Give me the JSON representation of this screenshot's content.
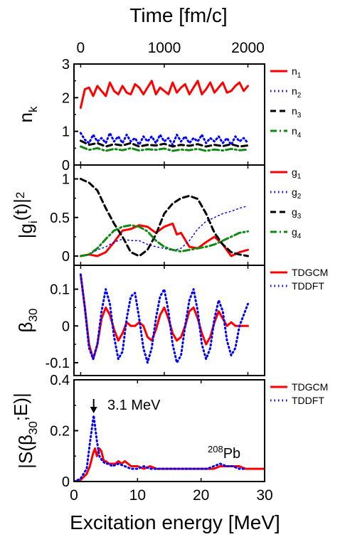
{
  "top_axis": {
    "title": "Time [fm/c]",
    "ticks": [
      {
        "v": 0,
        "label": "0"
      },
      {
        "v": 1000,
        "label": "1000"
      },
      {
        "v": 2000,
        "label": "2000"
      }
    ],
    "range": [
      -80,
      2200
    ]
  },
  "bottom_axis": {
    "title": "Excitation energy [MeV]",
    "ticks": [
      {
        "v": 0,
        "label": "0"
      },
      {
        "v": 10,
        "label": "10"
      },
      {
        "v": 20,
        "label": "20"
      },
      {
        "v": 30,
        "label": "30"
      }
    ],
    "range": [
      0,
      30
    ]
  },
  "colors": {
    "red": "#ff0000",
    "blue": "#0000ff",
    "black": "#000000",
    "green": "#118811"
  },
  "chart_data": [
    {
      "type": "line",
      "panel": "nk",
      "ylabel": "n",
      "ylabel_sub": "k",
      "xlim": [
        -80,
        2200
      ],
      "ylim": [
        0,
        3
      ],
      "yticks": [
        "0",
        "1",
        "2",
        "3"
      ],
      "yticks_v": [
        0,
        1,
        2,
        3
      ],
      "legend_placement": "right",
      "series": [
        {
          "name": "n",
          "sub": "1",
          "color": "red",
          "dash": "solid",
          "width": 3,
          "x": [
            0,
            50,
            100,
            150,
            200,
            250,
            300,
            350,
            400,
            450,
            500,
            550,
            600,
            650,
            700,
            750,
            800,
            850,
            900,
            950,
            1000,
            1050,
            1100,
            1150,
            1200,
            1250,
            1300,
            1350,
            1400,
            1450,
            1500,
            1550,
            1600,
            1650,
            1700,
            1750,
            1800,
            1850,
            1900,
            1950,
            2000
          ],
          "y": [
            1.7,
            2.25,
            2.3,
            2.05,
            2.35,
            2.2,
            2.05,
            2.45,
            2.2,
            2.1,
            2.35,
            2.15,
            2.1,
            2.4,
            2.3,
            2.1,
            2.3,
            2.5,
            2.1,
            2.3,
            2.2,
            2.1,
            2.45,
            2.15,
            2.3,
            2.4,
            2.1,
            2.3,
            2.5,
            2.1,
            2.25,
            2.45,
            2.15,
            2.3,
            2.45,
            2.15,
            2.2,
            2.35,
            2.45,
            2.2,
            2.35
          ]
        },
        {
          "name": "n",
          "sub": "2",
          "color": "blue",
          "dash": "dot",
          "width": 3,
          "x": [
            0,
            50,
            100,
            150,
            200,
            250,
            300,
            350,
            400,
            450,
            500,
            550,
            600,
            650,
            700,
            750,
            800,
            850,
            900,
            950,
            1000,
            1050,
            1100,
            1150,
            1200,
            1250,
            1300,
            1350,
            1400,
            1450,
            1500,
            1550,
            1600,
            1650,
            1700,
            1750,
            1800,
            1850,
            1900,
            1950,
            2000
          ],
          "y": [
            0.95,
            0.75,
            0.65,
            0.9,
            0.7,
            0.8,
            0.65,
            0.95,
            0.7,
            0.85,
            0.65,
            0.9,
            0.7,
            0.8,
            0.6,
            0.85,
            0.7,
            0.85,
            0.65,
            0.9,
            0.7,
            0.8,
            0.6,
            0.9,
            0.7,
            0.85,
            0.65,
            0.8,
            0.7,
            0.9,
            0.65,
            0.8,
            0.7,
            0.85,
            0.65,
            0.8,
            0.6,
            0.85,
            0.7,
            0.8,
            0.65
          ]
        },
        {
          "name": "n",
          "sub": "3",
          "color": "black",
          "dash": "dash",
          "width": 3,
          "x": [
            0,
            100,
            200,
            300,
            400,
            500,
            600,
            700,
            800,
            900,
            1000,
            1100,
            1200,
            1300,
            1400,
            1500,
            1600,
            1700,
            1800,
            1900,
            2000
          ],
          "y": [
            0.72,
            0.6,
            0.65,
            0.55,
            0.62,
            0.58,
            0.65,
            0.55,
            0.6,
            0.58,
            0.63,
            0.55,
            0.6,
            0.57,
            0.62,
            0.55,
            0.6,
            0.56,
            0.62,
            0.55,
            0.58
          ]
        },
        {
          "name": "n",
          "sub": "4",
          "color": "green",
          "dash": "dashdot",
          "width": 3,
          "x": [
            0,
            100,
            200,
            300,
            400,
            500,
            600,
            700,
            800,
            900,
            1000,
            1100,
            1200,
            1300,
            1400,
            1500,
            1600,
            1700,
            1800,
            1900,
            2000
          ],
          "y": [
            0.55,
            0.45,
            0.5,
            0.42,
            0.48,
            0.44,
            0.5,
            0.43,
            0.47,
            0.45,
            0.49,
            0.42,
            0.46,
            0.44,
            0.48,
            0.42,
            0.46,
            0.43,
            0.48,
            0.44,
            0.46
          ]
        }
      ]
    },
    {
      "type": "line",
      "panel": "gi",
      "ylabel": "|g",
      "ylabel_sub": "i",
      "ylabel_rest": "(t)|",
      "ylabel_sup": "2",
      "xlim": [
        -80,
        2200
      ],
      "ylim": [
        -0.12,
        1.18
      ],
      "yticks": [
        "0",
        "0.5",
        "1"
      ],
      "yticks_v": [
        0,
        0.5,
        1
      ],
      "legend_placement": "right",
      "series": [
        {
          "name": "g",
          "sub": "1",
          "color": "red",
          "dash": "solid",
          "width": 3,
          "x": [
            0,
            100,
            200,
            300,
            400,
            500,
            600,
            700,
            800,
            900,
            1000,
            1100,
            1150,
            1200,
            1300,
            1400,
            1500,
            1600,
            1700,
            1800,
            1900,
            2000
          ],
          "y": [
            0.0,
            0.02,
            0.0,
            0.05,
            0.18,
            0.33,
            0.35,
            0.4,
            0.38,
            0.3,
            0.38,
            0.42,
            0.28,
            0.3,
            0.12,
            0.1,
            0.18,
            0.25,
            0.15,
            0.0,
            0.05,
            0.08
          ]
        },
        {
          "name": "g",
          "sub": "2",
          "color": "blue",
          "dash": "dot",
          "width": 1.5,
          "x": [
            0,
            100,
            200,
            300,
            400,
            500,
            600,
            700,
            800,
            900,
            1000,
            1100,
            1200,
            1300,
            1400,
            1500,
            1600,
            1700,
            1800,
            1900,
            2000
          ],
          "y": [
            0.0,
            0.02,
            0.08,
            0.12,
            0.18,
            0.22,
            0.2,
            0.2,
            0.15,
            0.12,
            0.1,
            0.07,
            0.1,
            0.2,
            0.35,
            0.45,
            0.5,
            0.55,
            0.58,
            0.62,
            0.65
          ]
        },
        {
          "name": "g",
          "sub": "3",
          "color": "black",
          "dash": "dash",
          "width": 3,
          "x": [
            0,
            100,
            200,
            300,
            400,
            500,
            600,
            700,
            800,
            900,
            1000,
            1100,
            1200,
            1300,
            1400,
            1500,
            1600,
            1700,
            1800,
            1900,
            2000
          ],
          "y": [
            1.0,
            0.95,
            0.85,
            0.62,
            0.42,
            0.25,
            0.05,
            0.0,
            0.08,
            0.28,
            0.55,
            0.68,
            0.75,
            0.78,
            0.74,
            0.55,
            0.3,
            0.15,
            0.05,
            0.02,
            0.0
          ]
        },
        {
          "name": "g",
          "sub": "4",
          "color": "green",
          "dash": "dashdot",
          "width": 3,
          "x": [
            0,
            100,
            200,
            300,
            400,
            500,
            600,
            700,
            800,
            900,
            1000,
            1100,
            1200,
            1300,
            1400,
            1500,
            1600,
            1700,
            1800,
            1900,
            2000
          ],
          "y": [
            0.0,
            0.02,
            0.1,
            0.22,
            0.33,
            0.38,
            0.4,
            0.38,
            0.32,
            0.2,
            0.12,
            0.08,
            0.06,
            0.08,
            0.1,
            0.12,
            0.15,
            0.2,
            0.25,
            0.3,
            0.32
          ]
        }
      ]
    },
    {
      "type": "line",
      "panel": "beta",
      "ylabel": "β",
      "ylabel_sub": "30",
      "xlim": [
        -80,
        2200
      ],
      "ylim": [
        -0.135,
        0.165
      ],
      "yticks": [
        "-0.1",
        "0",
        "0.1"
      ],
      "yticks_v": [
        -0.1,
        0,
        0.1
      ],
      "legend_placement": "top-right",
      "series": [
        {
          "name": "TDGCM",
          "color": "red",
          "dash": "solid",
          "width": 3,
          "x": [
            0,
            50,
            100,
            150,
            200,
            250,
            300,
            350,
            400,
            450,
            500,
            550,
            600,
            650,
            700,
            750,
            800,
            850,
            900,
            950,
            1000,
            1050,
            1100,
            1150,
            1200,
            1250,
            1300,
            1350,
            1400,
            1450,
            1500,
            1550,
            1600,
            1650,
            1700,
            1750,
            1800,
            1850,
            1900,
            1950,
            2000
          ],
          "y": [
            0.14,
            0.05,
            -0.05,
            -0.09,
            -0.05,
            0.02,
            0.05,
            0.03,
            -0.01,
            -0.04,
            -0.02,
            0.01,
            0.0,
            0.0,
            0.01,
            0.0,
            -0.03,
            -0.04,
            -0.01,
            0.03,
            0.05,
            0.02,
            -0.02,
            -0.04,
            -0.03,
            0.0,
            0.04,
            0.05,
            0.02,
            -0.02,
            -0.05,
            -0.03,
            0.01,
            0.04,
            0.02,
            0.0,
            0.01,
            0.0,
            0.0,
            0.0,
            0.0
          ]
        },
        {
          "name": "TDDFT",
          "color": "blue",
          "dash": "dot",
          "width": 3,
          "x": [
            0,
            50,
            100,
            150,
            200,
            250,
            300,
            350,
            400,
            450,
            500,
            550,
            600,
            650,
            700,
            750,
            800,
            850,
            900,
            950,
            1000,
            1050,
            1100,
            1150,
            1200,
            1250,
            1300,
            1350,
            1400,
            1450,
            1500,
            1550,
            1600,
            1650,
            1700,
            1750,
            1800,
            1850,
            1900,
            1950,
            2000
          ],
          "y": [
            0.14,
            0.05,
            -0.06,
            -0.09,
            -0.05,
            0.04,
            0.1,
            0.06,
            -0.03,
            -0.09,
            -0.07,
            0.02,
            0.08,
            0.09,
            0.02,
            -0.06,
            -0.1,
            -0.06,
            0.02,
            0.08,
            0.1,
            0.04,
            -0.05,
            -0.1,
            -0.08,
            0.0,
            0.07,
            0.1,
            0.04,
            -0.05,
            -0.09,
            -0.06,
            0.02,
            0.07,
            0.04,
            -0.04,
            -0.08,
            -0.06,
            0.0,
            0.03,
            0.06
          ]
        }
      ]
    },
    {
      "type": "line",
      "panel": "strength",
      "ylabel": "|S(β",
      "ylabel_sub": "30",
      "ylabel_rest": ";E)|",
      "xlim": [
        0,
        30
      ],
      "ylim": [
        0,
        0.4
      ],
      "yticks": [
        "0",
        "0.2",
        "0.4"
      ],
      "yticks_v": [
        0,
        0.2,
        0.4
      ],
      "legend_placement": "top-right",
      "annotations": {
        "peak_label": "3.1 MeV",
        "peak_energy": 3.1,
        "nucleus_sup": "208",
        "nucleus": "Pb"
      },
      "series": [
        {
          "name": "TDGCM",
          "color": "red",
          "dash": "solid",
          "width": 3,
          "x": [
            0,
            1,
            2,
            2.5,
            3,
            3.3,
            3.6,
            4,
            4.3,
            4.7,
            5,
            5.5,
            6,
            6.5,
            7,
            7.5,
            8,
            9,
            10,
            11,
            12,
            13,
            14,
            15,
            16,
            17,
            18,
            19,
            20,
            21,
            22,
            23,
            24,
            25,
            26,
            27,
            28,
            29,
            30
          ],
          "y": [
            0.0,
            0.005,
            0.03,
            0.06,
            0.11,
            0.13,
            0.1,
            0.13,
            0.12,
            0.08,
            0.08,
            0.07,
            0.07,
            0.07,
            0.08,
            0.07,
            0.08,
            0.06,
            0.06,
            0.05,
            0.06,
            0.05,
            0.05,
            0.05,
            0.05,
            0.05,
            0.05,
            0.05,
            0.05,
            0.05,
            0.05,
            0.06,
            0.06,
            0.06,
            0.06,
            0.05,
            0.05,
            0.05,
            0.05
          ]
        },
        {
          "name": "TDDFT",
          "color": "blue",
          "dash": "dot",
          "width": 3,
          "x": [
            0,
            1,
            2,
            2.5,
            3.1,
            3.6,
            4,
            4.5,
            5,
            5.5,
            6,
            7,
            8,
            9,
            10,
            11,
            12,
            14,
            16,
            18,
            20,
            21,
            22,
            23,
            24,
            25,
            26,
            27
          ],
          "y": [
            0.0,
            0.01,
            0.05,
            0.15,
            0.26,
            0.16,
            0.1,
            0.08,
            0.07,
            0.07,
            0.06,
            0.07,
            0.06,
            0.05,
            0.05,
            0.06,
            0.05,
            0.05,
            0.05,
            0.05,
            0.05,
            0.05,
            0.06,
            0.07,
            0.06,
            0.06,
            0.05,
            0.05
          ]
        }
      ]
    }
  ]
}
